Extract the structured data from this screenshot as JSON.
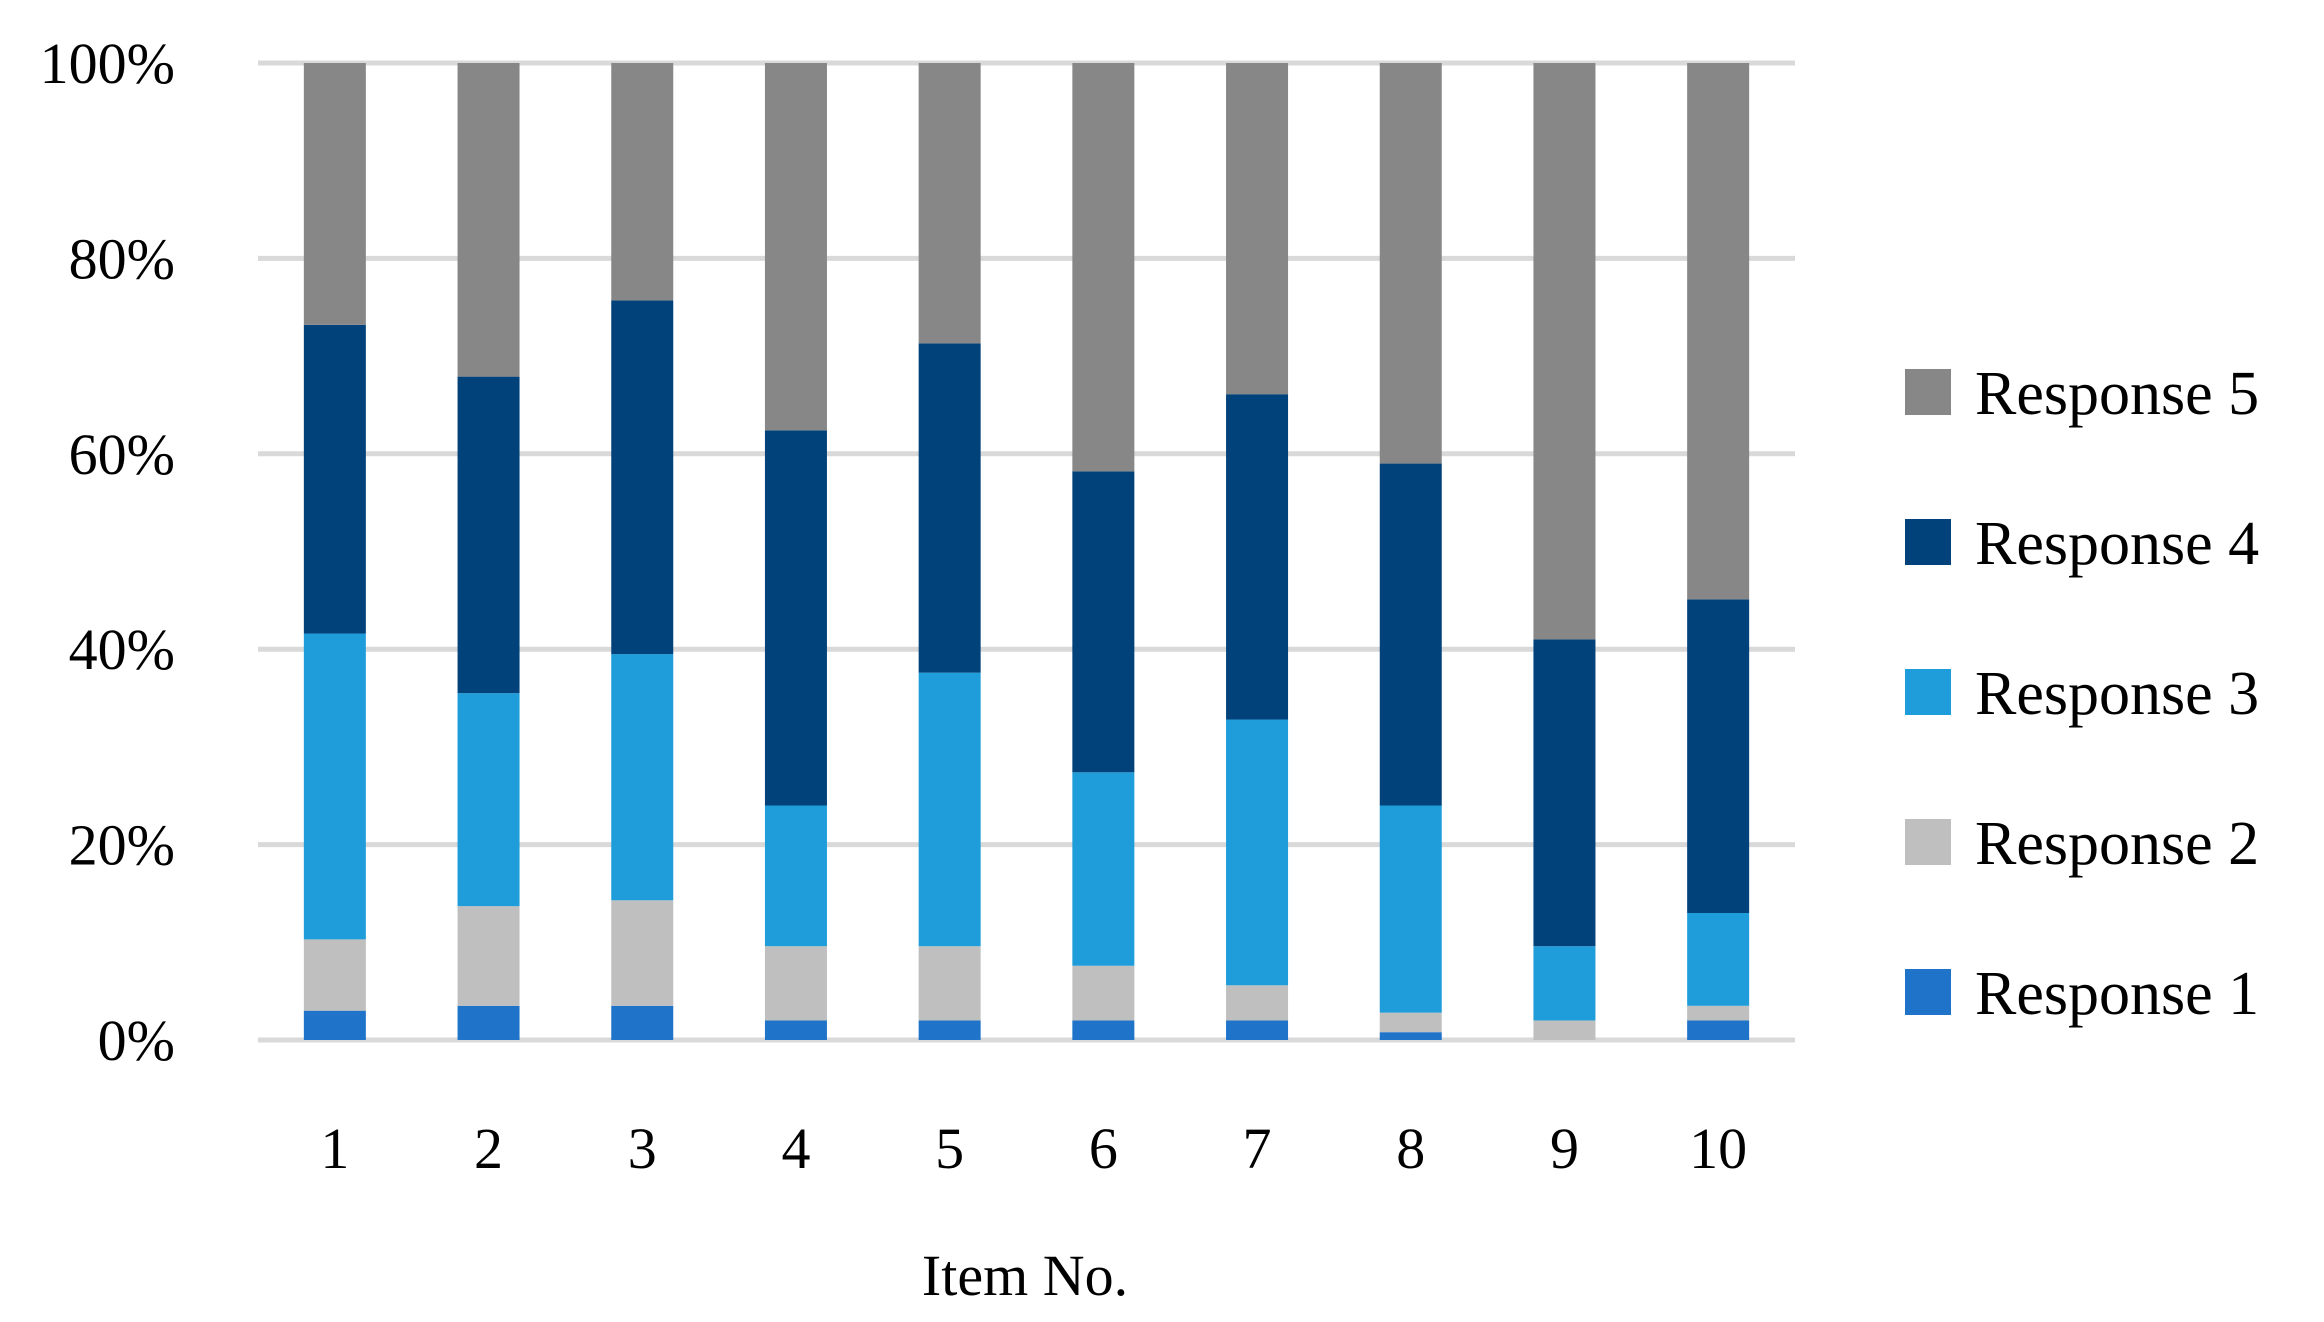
{
  "chart_data": {
    "type": "bar",
    "stacked": true,
    "percent_stacked": true,
    "categories": [
      "1",
      "2",
      "3",
      "4",
      "5",
      "6",
      "7",
      "8",
      "9",
      "10"
    ],
    "series": [
      {
        "name": "Response 1",
        "color": "#1f73c9",
        "values": [
          3,
          3.5,
          3.5,
          2,
          2,
          2,
          2,
          0.8,
          0,
          2
        ]
      },
      {
        "name": "Response 2",
        "color": "#bfbfbf",
        "values": [
          7.3,
          10.2,
          10.8,
          7.6,
          7.6,
          5.6,
          3.6,
          2,
          2,
          1.5
        ]
      },
      {
        "name": "Response 3",
        "color": "#1e9dda",
        "values": [
          31.3,
          21.8,
          25.2,
          14.4,
          28,
          19.8,
          27.2,
          21.2,
          7.6,
          9.5
        ]
      },
      {
        "name": "Response 4",
        "color": "#01427a",
        "values": [
          31.6,
          32.4,
          36.2,
          38.4,
          33.7,
          30.8,
          33.3,
          35,
          31.4,
          32.1
        ]
      },
      {
        "name": "Response 5",
        "color": "#878787",
        "values": [
          26.8,
          32.1,
          24.3,
          37.6,
          28.7,
          41.8,
          33.9,
          41,
          59,
          54.9
        ]
      }
    ],
    "title": "",
    "xlabel": "Item No.",
    "ylabel": "",
    "ylim": [
      0,
      100
    ],
    "y_ticks": [
      "0%",
      "20%",
      "40%",
      "60%",
      "80%",
      "100%"
    ],
    "grid": true,
    "legend_position": "right",
    "legend_order": [
      "Response 5",
      "Response 4",
      "Response 3",
      "Response 2",
      "Response 1"
    ],
    "colors": {
      "grid": "#d9d9d9"
    }
  }
}
